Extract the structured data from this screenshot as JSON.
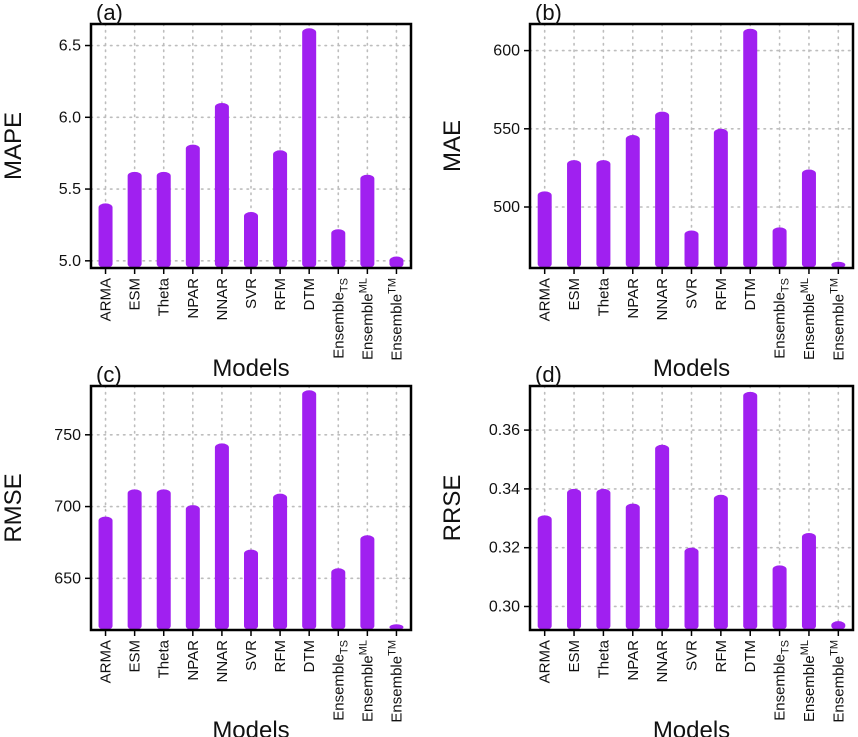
{
  "chart_data": [
    {
      "type": "bar",
      "panel_label": "(a)",
      "title": "",
      "xlabel": "Models",
      "ylabel": "MAPE",
      "categories": [
        "ARMA",
        "ESM",
        "Theta",
        "NPAR",
        "NNAR",
        "SVR",
        "RFM",
        "DTM",
        "Ensemble_TS",
        "Ensemble^ML",
        "Ensemble^TM"
      ],
      "values": [
        5.4,
        5.62,
        5.62,
        5.81,
        6.1,
        5.34,
        5.77,
        6.62,
        5.22,
        5.6,
        5.03
      ],
      "ylim": [
        4.95,
        6.65
      ],
      "yticks": [
        5.0,
        5.5,
        6.0,
        6.5
      ],
      "ytick_labels": [
        "5.0",
        "5.5",
        "6.0",
        "6.5"
      ],
      "grid": true,
      "color": "#a020f0"
    },
    {
      "type": "bar",
      "panel_label": "(b)",
      "title": "",
      "xlabel": "Models",
      "ylabel": "MAE",
      "categories": [
        "ARMA",
        "ESM",
        "Theta",
        "NPAR",
        "NNAR",
        "SVR",
        "RFM",
        "DTM",
        "Ensemble_TS",
        "Ensemble^ML",
        "Ensemble^TM"
      ],
      "values": [
        510,
        530,
        530,
        546,
        561,
        485,
        550,
        614,
        487,
        524,
        465
      ],
      "ylim": [
        461,
        617
      ],
      "yticks": [
        500,
        550,
        600
      ],
      "ytick_labels": [
        "500",
        "550",
        "600"
      ],
      "grid": true,
      "color": "#a020f0"
    },
    {
      "type": "bar",
      "panel_label": "(c)",
      "title": "",
      "xlabel": "Models",
      "ylabel": "RMSE",
      "categories": [
        "ARMA",
        "ESM",
        "Theta",
        "NPAR",
        "NNAR",
        "SVR",
        "RFM",
        "DTM",
        "Ensemble_TS",
        "Ensemble^ML",
        "Ensemble^TM"
      ],
      "values": [
        693,
        712,
        712,
        701,
        744,
        670,
        709,
        781,
        657,
        680,
        618
      ],
      "ylim": [
        614,
        784
      ],
      "yticks": [
        650,
        700,
        750
      ],
      "ytick_labels": [
        "650",
        "700",
        "750"
      ],
      "grid": true,
      "color": "#a020f0"
    },
    {
      "type": "bar",
      "panel_label": "(d)",
      "title": "",
      "xlabel": "Models",
      "ylabel": "RRSE",
      "categories": [
        "ARMA",
        "ESM",
        "Theta",
        "NPAR",
        "NNAR",
        "SVR",
        "RFM",
        "DTM",
        "Ensemble_TS",
        "Ensemble^ML",
        "Ensemble^TM"
      ],
      "values": [
        0.331,
        0.34,
        0.34,
        0.335,
        0.355,
        0.32,
        0.338,
        0.373,
        0.314,
        0.325,
        0.295
      ],
      "ylim": [
        0.292,
        0.375
      ],
      "yticks": [
        0.3,
        0.32,
        0.34,
        0.36
      ],
      "ytick_labels": [
        "0.30",
        "0.32",
        "0.34",
        "0.36"
      ],
      "grid": true,
      "color": "#a020f0"
    }
  ]
}
